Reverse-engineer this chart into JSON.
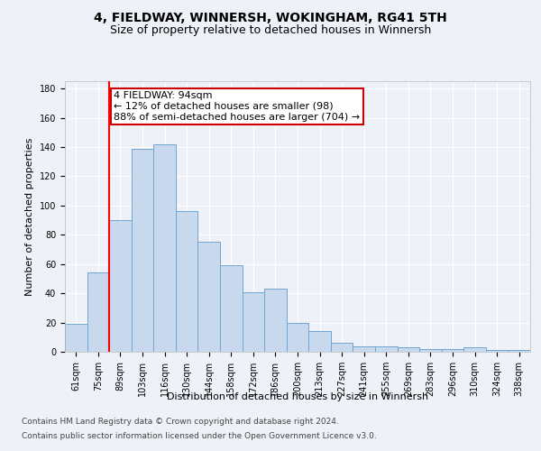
{
  "title1": "4, FIELDWAY, WINNERSH, WOKINGHAM, RG41 5TH",
  "title2": "Size of property relative to detached houses in Winnersh",
  "xlabel": "Distribution of detached houses by size in Winnersh",
  "ylabel": "Number of detached properties",
  "categories": [
    "61sqm",
    "75sqm",
    "89sqm",
    "103sqm",
    "116sqm",
    "130sqm",
    "144sqm",
    "158sqm",
    "172sqm",
    "186sqm",
    "200sqm",
    "213sqm",
    "227sqm",
    "241sqm",
    "255sqm",
    "269sqm",
    "283sqm",
    "296sqm",
    "310sqm",
    "324sqm",
    "338sqm"
  ],
  "values": [
    19,
    54,
    90,
    139,
    142,
    96,
    75,
    59,
    41,
    43,
    20,
    14,
    6,
    4,
    4,
    3,
    2,
    2,
    3,
    1,
    1
  ],
  "bar_color": "#c8d9ee",
  "bar_edge_color": "#6ea6d2",
  "red_line_index": 2,
  "annotation_line1": "4 FIELDWAY: 94sqm",
  "annotation_line2": "← 12% of detached houses are smaller (98)",
  "annotation_line3": "88% of semi-detached houses are larger (704) →",
  "annotation_box_color": "#ffffff",
  "annotation_edge_color": "#cc0000",
  "ylim": [
    0,
    185
  ],
  "yticks": [
    0,
    20,
    40,
    60,
    80,
    100,
    120,
    140,
    160,
    180
  ],
  "footer1": "Contains HM Land Registry data © Crown copyright and database right 2024.",
  "footer2": "Contains public sector information licensed under the Open Government Licence v3.0.",
  "background_color": "#eef2f8",
  "grid_color": "#ffffff",
  "title1_fontsize": 10,
  "title2_fontsize": 9,
  "axis_label_fontsize": 8,
  "tick_fontsize": 7,
  "annotation_fontsize": 8,
  "footer_fontsize": 6.5
}
